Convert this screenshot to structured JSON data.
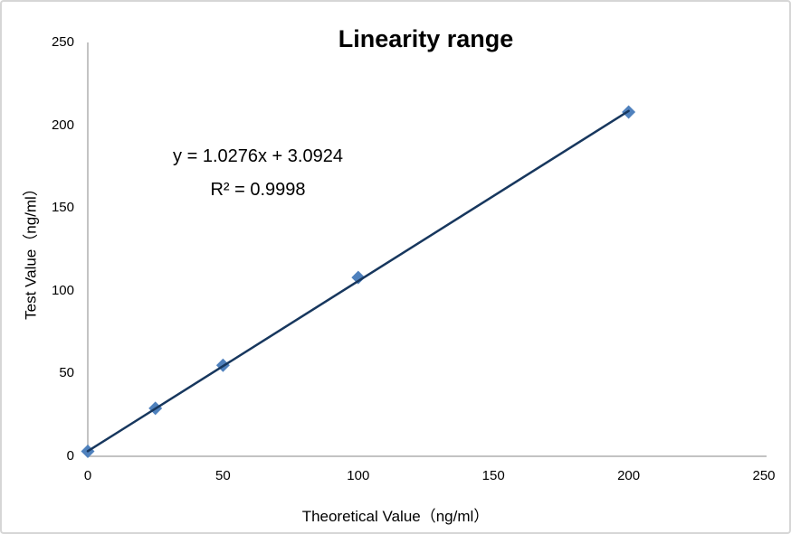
{
  "chart_data": {
    "type": "scatter",
    "title": "Linearity range",
    "xlabel": "Theoretical Value（ng/ml）",
    "ylabel": "Test Value（ng/ml）",
    "x": [
      0,
      25,
      50,
      100,
      200
    ],
    "y": [
      3,
      29,
      55,
      108,
      208
    ],
    "trendline": {
      "equation": "y = 1.0276x + 3.0924",
      "r2_label": "R² = 0.9998",
      "slope": 1.0276,
      "intercept": 3.0924,
      "x_start": 0,
      "x_end": 200
    },
    "xlim": [
      0,
      250
    ],
    "ylim": [
      0,
      250
    ],
    "x_ticks": [
      0,
      50,
      100,
      150,
      200,
      250
    ],
    "y_ticks": [
      0,
      50,
      100,
      150,
      200,
      250
    ],
    "grid": false,
    "legend": "none",
    "colors": {
      "marker": "#4F81BD",
      "trendline": "#17375E",
      "axis_line": "#C3C3C3",
      "text": "#000000"
    }
  }
}
